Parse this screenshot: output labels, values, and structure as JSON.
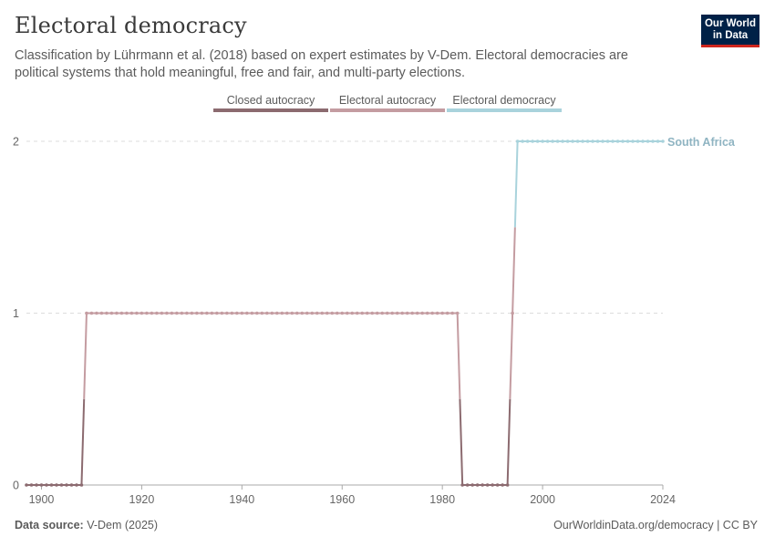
{
  "header": {
    "title": "Electoral democracy",
    "subtitle": "Classification by Lührmann et al. (2018) based on expert estimates by V-Dem. Electoral democracies are political systems that hold meaningful, free and fair, and multi-party elections.",
    "logo_line1": "Our World",
    "logo_line2": "in Data"
  },
  "footer": {
    "source_label": "Data source:",
    "source_value": "V-Dem (2025)",
    "attribution": "OurWorldinData.org/democracy | CC BY"
  },
  "colors": {
    "closed_autocracy": "#8c6b70",
    "electoral_autocracy": "#c49ca1",
    "electoral_democracy": "#a9d3dc",
    "label": "#8fb4c2",
    "grid": "#dddddd",
    "axis": "#a9a9a9"
  },
  "chart_data": {
    "type": "line",
    "title": "Electoral democracy",
    "xlabel": "",
    "ylabel": "",
    "xlim": [
      1897,
      2024
    ],
    "ylim": [
      0,
      2
    ],
    "x_ticks": [
      1900,
      1920,
      1940,
      1960,
      1980,
      2000,
      2024
    ],
    "y_ticks": [
      0,
      1,
      2
    ],
    "legend": {
      "placement": "top-center",
      "items": [
        {
          "label": "Closed autocracy",
          "color": "#8c6b70"
        },
        {
          "label": "Electoral autocracy",
          "color": "#c49ca1"
        },
        {
          "label": "Electoral democracy",
          "color": "#a9d3dc"
        }
      ]
    },
    "series": [
      {
        "name": "South Africa",
        "label": "South Africa",
        "start_year": 1897,
        "end_year": 2024,
        "segments": [
          {
            "from": 1897,
            "to": 1908,
            "value": 0
          },
          {
            "from": 1909,
            "to": 1983,
            "value": 1
          },
          {
            "from": 1984,
            "to": 1993,
            "value": 0
          },
          {
            "from": 1994,
            "to": 1994,
            "value": 1
          },
          {
            "from": 1995,
            "to": 2024,
            "value": 2
          }
        ]
      }
    ]
  }
}
